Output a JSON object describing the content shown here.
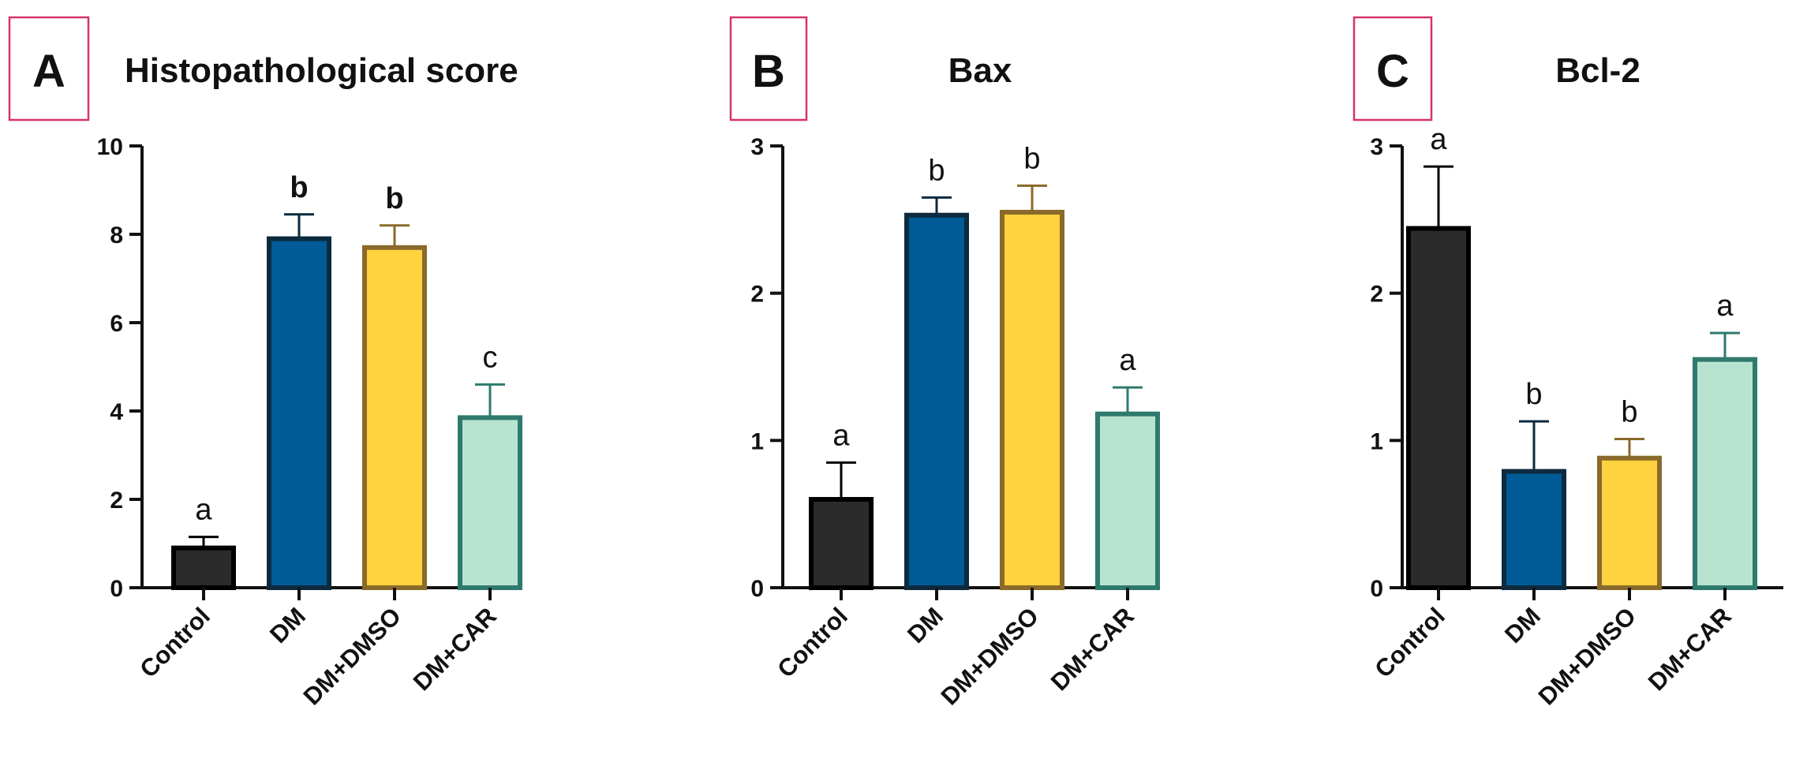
{
  "colors": {
    "Control": {
      "fill": "#2b2b2b",
      "stroke": "#000000"
    },
    "DM": {
      "fill": "#005b96",
      "stroke": "#0d2a3e"
    },
    "DM+DMSO": {
      "fill": "#ffd23f",
      "stroke": "#8a6a2a"
    },
    "DM+CAR": {
      "fill": "#b9e3d1",
      "stroke": "#2e7a6e"
    },
    "panel_box": "#d6336c"
  },
  "chart_data": [
    {
      "type": "bar",
      "panel": "A",
      "title": "Histopathological score",
      "categories": [
        "Control",
        "DM",
        "DM+DMSO",
        "DM+CAR"
      ],
      "values": [
        0.9,
        7.9,
        7.7,
        3.85
      ],
      "errors": [
        0.25,
        0.55,
        0.5,
        0.75
      ],
      "labels": [
        "a",
        "b",
        "b",
        "c"
      ],
      "labels_bold": [
        false,
        true,
        true,
        false
      ],
      "ylim": [
        0,
        10
      ],
      "yticks": [
        "0",
        "2",
        "4",
        "6",
        "8",
        "10"
      ],
      "ytick_values": [
        0,
        2,
        4,
        6,
        8,
        10
      ]
    },
    {
      "type": "bar",
      "panel": "B",
      "title": "Bax",
      "categories": [
        "Control",
        "DM",
        "DM+DMSO",
        "DM+CAR"
      ],
      "values": [
        0.6,
        2.53,
        2.55,
        1.18
      ],
      "errors": [
        0.25,
        0.12,
        0.18,
        0.18
      ],
      "labels": [
        "a",
        "b",
        "b",
        "a"
      ],
      "labels_bold": [
        false,
        false,
        false,
        false
      ],
      "ylim": [
        0,
        3
      ],
      "yticks": [
        "0",
        "1",
        "2",
        "3"
      ],
      "ytick_values": [
        0,
        1,
        2,
        3
      ]
    },
    {
      "type": "bar",
      "panel": "C",
      "title": "Bcl-2",
      "categories": [
        "Control",
        "DM",
        "DM+DMSO",
        "DM+CAR"
      ],
      "values": [
        2.44,
        0.79,
        0.88,
        1.55
      ],
      "errors": [
        0.42,
        0.34,
        0.13,
        0.18
      ],
      "labels": [
        "a",
        "b",
        "b",
        "a"
      ],
      "labels_bold": [
        false,
        false,
        false,
        false
      ],
      "ylim": [
        0,
        3
      ],
      "yticks": [
        "0",
        "1",
        "2",
        "3"
      ],
      "ytick_values": [
        0,
        1,
        2,
        3
      ]
    }
  ]
}
